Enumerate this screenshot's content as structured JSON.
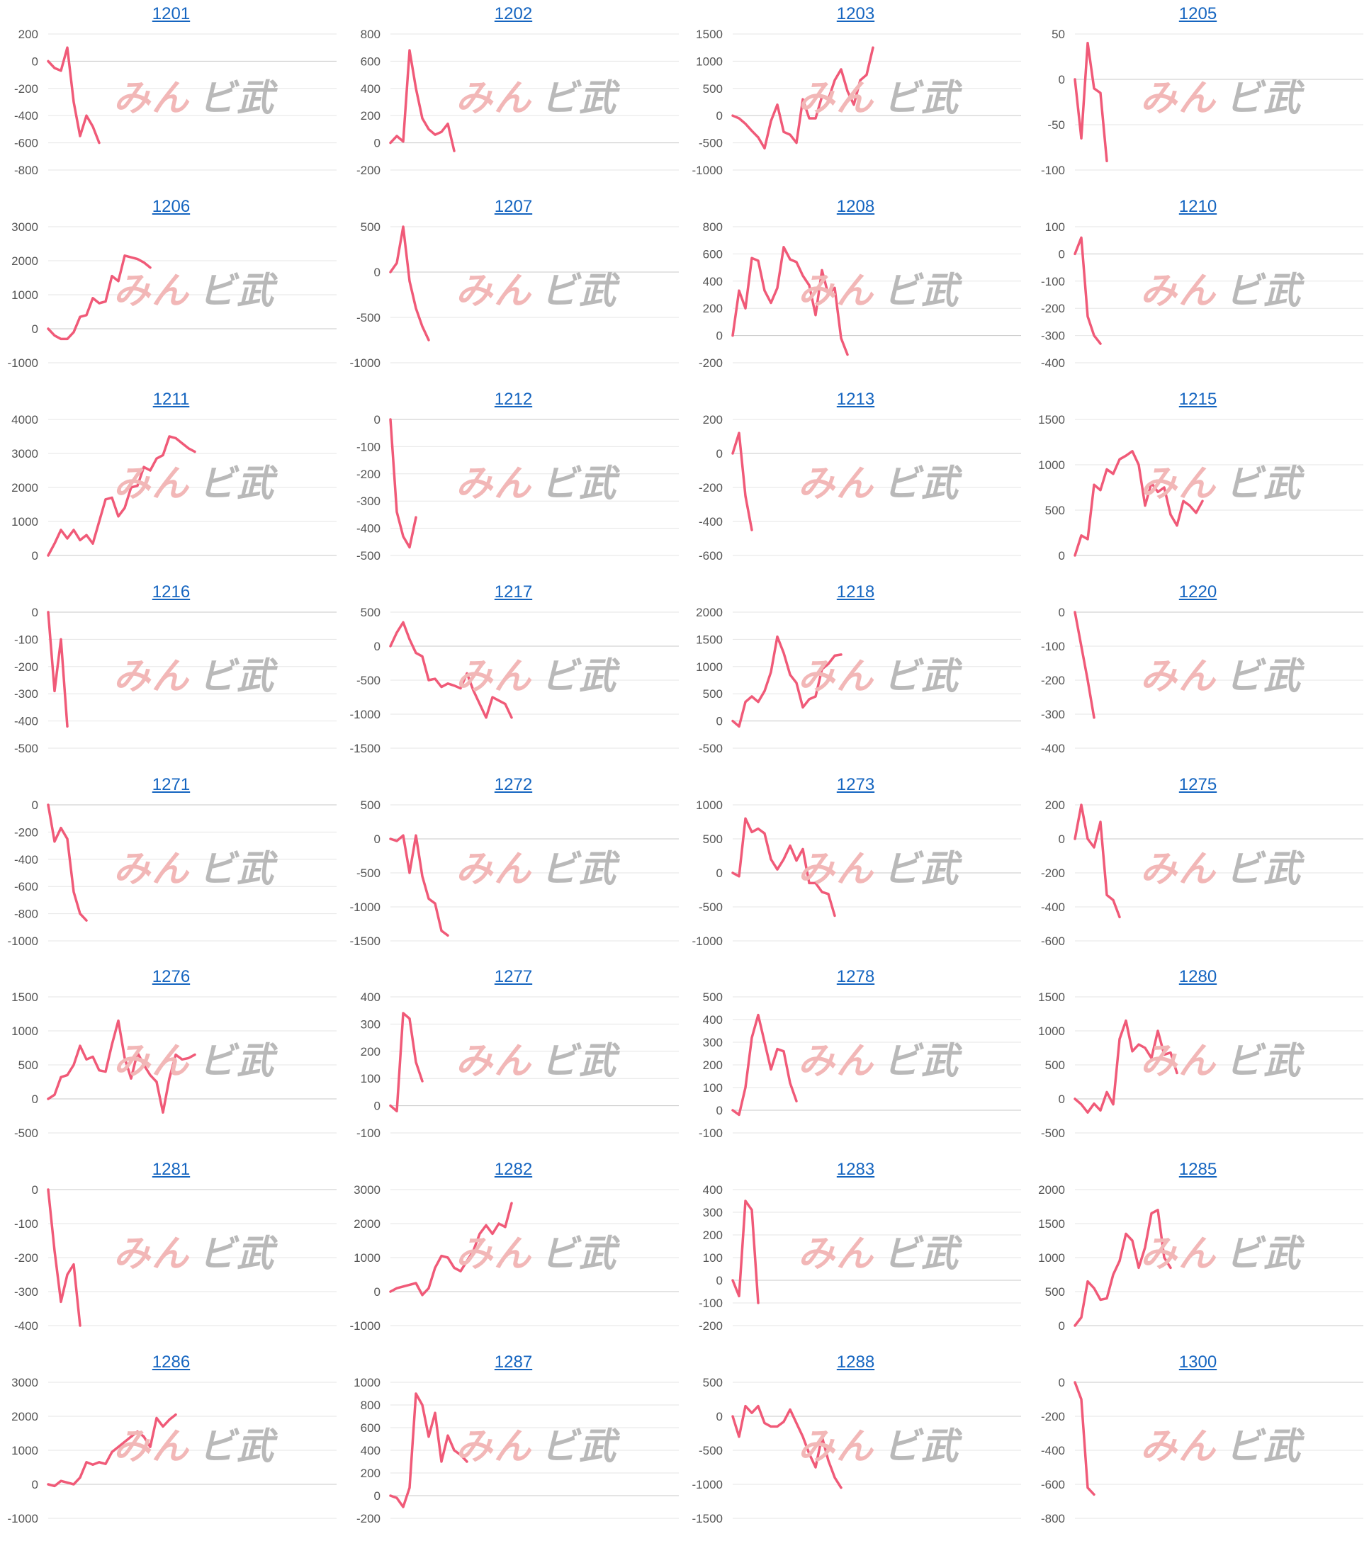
{
  "watermark": {
    "part1": "みん",
    "part2": "ビ武"
  },
  "line_color": "#f05a78",
  "chart_data": [
    {
      "type": "line",
      "title": "1201",
      "ylim": [
        -800,
        200
      ],
      "ticks": [
        200,
        0,
        -200,
        -400,
        -600,
        -800
      ],
      "values": [
        0,
        -50,
        -70,
        100,
        -300,
        -550,
        -400,
        -480,
        -600
      ]
    },
    {
      "type": "line",
      "title": "1202",
      "ylim": [
        -200,
        800
      ],
      "ticks": [
        800,
        600,
        400,
        200,
        0,
        -200
      ],
      "values": [
        0,
        50,
        10,
        680,
        400,
        180,
        100,
        60,
        80,
        140,
        -60
      ]
    },
    {
      "type": "line",
      "title": "1203",
      "ylim": [
        -1000,
        1500
      ],
      "ticks": [
        1500,
        1000,
        500,
        0,
        -500,
        -1000
      ],
      "values": [
        0,
        -50,
        -150,
        -280,
        -400,
        -600,
        -100,
        200,
        -300,
        -350,
        -500,
        300,
        -50,
        -50,
        350,
        300,
        650,
        850,
        450,
        200,
        650,
        750,
        1250
      ]
    },
    {
      "type": "line",
      "title": "1205",
      "ylim": [
        -100,
        50
      ],
      "ticks": [
        50,
        0,
        -50,
        -100
      ],
      "values": [
        0,
        -65,
        40,
        -10,
        -15,
        -90
      ]
    },
    {
      "type": "line",
      "title": "1206",
      "ylim": [
        -1000,
        3000
      ],
      "ticks": [
        3000,
        2000,
        1000,
        0,
        -1000
      ],
      "values": [
        0,
        -200,
        -300,
        -300,
        -100,
        350,
        400,
        900,
        750,
        800,
        1550,
        1400,
        2150,
        2100,
        2050,
        1950,
        1800
      ]
    },
    {
      "type": "line",
      "title": "1207",
      "ylim": [
        -1000,
        500
      ],
      "ticks": [
        500,
        0,
        -500,
        -1000
      ],
      "values": [
        0,
        100,
        500,
        -100,
        -400,
        -600,
        -750
      ]
    },
    {
      "type": "line",
      "title": "1208",
      "ylim": [
        -200,
        800
      ],
      "ticks": [
        800,
        600,
        400,
        200,
        0,
        -200
      ],
      "values": [
        0,
        330,
        200,
        570,
        550,
        330,
        240,
        350,
        650,
        560,
        540,
        440,
        370,
        150,
        480,
        300,
        350,
        -20,
        -140
      ]
    },
    {
      "type": "line",
      "title": "1210",
      "ylim": [
        -400,
        100
      ],
      "ticks": [
        100,
        0,
        -100,
        -200,
        -300,
        -400
      ],
      "values": [
        0,
        60,
        -230,
        -300,
        -330
      ]
    },
    {
      "type": "line",
      "title": "1211",
      "ylim": [
        0,
        4000
      ],
      "ticks": [
        4000,
        3000,
        2000,
        1000,
        0
      ],
      "values": [
        0,
        350,
        750,
        500,
        750,
        450,
        600,
        350,
        1000,
        1650,
        1700,
        1150,
        1400,
        2000,
        2050,
        2600,
        2500,
        2850,
        2950,
        3500,
        3450,
        3300,
        3150,
        3050
      ]
    },
    {
      "type": "line",
      "title": "1212",
      "ylim": [
        -500,
        0
      ],
      "ticks": [
        0,
        -100,
        -200,
        -300,
        -400,
        -500
      ],
      "values": [
        0,
        -340,
        -430,
        -470,
        -360
      ]
    },
    {
      "type": "line",
      "title": "1213",
      "ylim": [
        -600,
        200
      ],
      "ticks": [
        200,
        0,
        -200,
        -400,
        -600
      ],
      "values": [
        0,
        120,
        -250,
        -450
      ]
    },
    {
      "type": "line",
      "title": "1215",
      "ylim": [
        0,
        1500
      ],
      "ticks": [
        1500,
        1000,
        500,
        0
      ],
      "values": [
        0,
        220,
        180,
        780,
        720,
        950,
        900,
        1060,
        1100,
        1150,
        1000,
        550,
        800,
        700,
        750,
        450,
        330,
        600,
        550,
        470,
        600
      ]
    },
    {
      "type": "line",
      "title": "1216",
      "ylim": [
        -500,
        0
      ],
      "ticks": [
        0,
        -100,
        -200,
        -300,
        -400,
        -500
      ],
      "values": [
        0,
        -290,
        -100,
        -420
      ]
    },
    {
      "type": "line",
      "title": "1217",
      "ylim": [
        -1500,
        500
      ],
      "ticks": [
        500,
        0,
        -500,
        -1000,
        -1500
      ],
      "values": [
        0,
        200,
        350,
        100,
        -100,
        -150,
        -500,
        -480,
        -600,
        -550,
        -580,
        -620,
        -400,
        -650,
        -850,
        -1050,
        -750,
        -800,
        -850,
        -1050
      ]
    },
    {
      "type": "line",
      "title": "1218",
      "ylim": [
        -500,
        2000
      ],
      "ticks": [
        2000,
        1500,
        1000,
        500,
        0,
        -500
      ],
      "values": [
        0,
        -100,
        350,
        450,
        350,
        550,
        900,
        1550,
        1250,
        850,
        700,
        250,
        400,
        450,
        950,
        1050,
        1200,
        1220
      ]
    },
    {
      "type": "line",
      "title": "1220",
      "ylim": [
        -400,
        0
      ],
      "ticks": [
        0,
        -100,
        -200,
        -300,
        -400
      ],
      "values": [
        0,
        -100,
        -200,
        -310
      ]
    },
    {
      "type": "line",
      "title": "1271",
      "ylim": [
        -1000,
        0
      ],
      "ticks": [
        0,
        -200,
        -400,
        -600,
        -800,
        -1000
      ],
      "values": [
        0,
        -270,
        -170,
        -250,
        -640,
        -800,
        -850
      ]
    },
    {
      "type": "line",
      "title": "1272",
      "ylim": [
        -1500,
        500
      ],
      "ticks": [
        500,
        0,
        -500,
        -1000,
        -1500
      ],
      "values": [
        0,
        -30,
        50,
        -500,
        50,
        -550,
        -880,
        -950,
        -1350,
        -1420
      ]
    },
    {
      "type": "line",
      "title": "1273",
      "ylim": [
        -1000,
        1000
      ],
      "ticks": [
        1000,
        500,
        0,
        -500,
        -1000
      ],
      "values": [
        0,
        -50,
        800,
        600,
        650,
        580,
        200,
        50,
        200,
        400,
        180,
        350,
        -150,
        -150,
        -280,
        -310,
        -630
      ]
    },
    {
      "type": "line",
      "title": "1275",
      "ylim": [
        -600,
        200
      ],
      "ticks": [
        200,
        0,
        -200,
        -400,
        -600
      ],
      "values": [
        0,
        200,
        0,
        -50,
        100,
        -330,
        -360,
        -460
      ]
    },
    {
      "type": "line",
      "title": "1276",
      "ylim": [
        -500,
        1500
      ],
      "ticks": [
        1500,
        1000,
        500,
        0,
        -500
      ],
      "values": [
        0,
        60,
        320,
        350,
        500,
        780,
        580,
        620,
        420,
        400,
        800,
        1150,
        600,
        300,
        680,
        500,
        350,
        250,
        -200,
        300,
        650,
        580,
        600,
        650
      ]
    },
    {
      "type": "line",
      "title": "1277",
      "ylim": [
        -100,
        400
      ],
      "ticks": [
        400,
        300,
        200,
        100,
        0,
        -100
      ],
      "values": [
        0,
        -20,
        340,
        320,
        160,
        90
      ]
    },
    {
      "type": "line",
      "title": "1278",
      "ylim": [
        -100,
        500
      ],
      "ticks": [
        500,
        400,
        300,
        200,
        100,
        0,
        -100
      ],
      "values": [
        0,
        -20,
        100,
        320,
        420,
        300,
        180,
        270,
        260,
        120,
        40
      ]
    },
    {
      "type": "line",
      "title": "1280",
      "ylim": [
        -500,
        1500
      ],
      "ticks": [
        1500,
        1000,
        500,
        0,
        -500
      ],
      "values": [
        0,
        -80,
        -200,
        -70,
        -170,
        100,
        -80,
        880,
        1150,
        700,
        800,
        750,
        600,
        1000,
        650,
        680,
        380
      ]
    },
    {
      "type": "line",
      "title": "1281",
      "ylim": [
        -400,
        0
      ],
      "ticks": [
        0,
        -100,
        -200,
        -300,
        -400
      ],
      "values": [
        0,
        -180,
        -330,
        -250,
        -220,
        -400
      ]
    },
    {
      "type": "line",
      "title": "1282",
      "ylim": [
        -1000,
        3000
      ],
      "ticks": [
        3000,
        2000,
        1000,
        0,
        -1000
      ],
      "values": [
        0,
        100,
        150,
        200,
        250,
        -100,
        100,
        700,
        1050,
        1000,
        700,
        600,
        900,
        1200,
        1700,
        1950,
        1700,
        2000,
        1900,
        2600
      ]
    },
    {
      "type": "line",
      "title": "1283",
      "ylim": [
        -200,
        400
      ],
      "ticks": [
        400,
        300,
        200,
        100,
        0,
        -100,
        -200
      ],
      "values": [
        0,
        -70,
        350,
        310,
        -100
      ]
    },
    {
      "type": "line",
      "title": "1285",
      "ylim": [
        0,
        2000
      ],
      "ticks": [
        2000,
        1500,
        1000,
        500,
        0
      ],
      "values": [
        0,
        120,
        650,
        550,
        380,
        400,
        750,
        950,
        1350,
        1250,
        850,
        1150,
        1650,
        1700,
        1000,
        850
      ]
    },
    {
      "type": "line",
      "title": "1286",
      "ylim": [
        -1000,
        3000
      ],
      "ticks": [
        3000,
        2000,
        1000,
        0,
        -1000
      ],
      "values": [
        0,
        -50,
        100,
        50,
        0,
        200,
        650,
        580,
        650,
        600,
        950,
        1100,
        1250,
        1400,
        1550,
        1400,
        1100,
        1950,
        1700,
        1900,
        2050
      ]
    },
    {
      "type": "line",
      "title": "1287",
      "ylim": [
        -200,
        1000
      ],
      "ticks": [
        1000,
        800,
        600,
        400,
        200,
        0,
        -200
      ],
      "values": [
        0,
        -20,
        -100,
        70,
        900,
        800,
        520,
        730,
        300,
        530,
        400,
        360,
        300
      ]
    },
    {
      "type": "line",
      "title": "1288",
      "ylim": [
        -1500,
        500
      ],
      "ticks": [
        500,
        0,
        -500,
        -1000,
        -1500
      ],
      "values": [
        0,
        -300,
        150,
        50,
        150,
        -100,
        -150,
        -150,
        -80,
        100,
        -100,
        -300,
        -550,
        -750,
        -300,
        -650,
        -900,
        -1050
      ]
    },
    {
      "type": "line",
      "title": "1300",
      "ylim": [
        -800,
        0
      ],
      "ticks": [
        0,
        -200,
        -400,
        -600,
        -800
      ],
      "values": [
        0,
        -100,
        -620,
        -660
      ]
    }
  ]
}
